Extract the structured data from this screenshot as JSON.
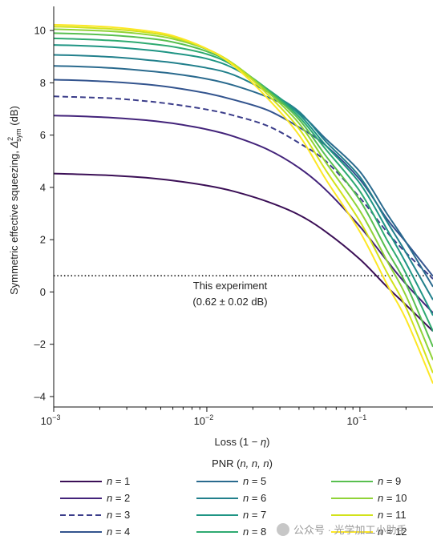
{
  "chart_data": {
    "type": "line",
    "xlabel_main": "Loss (1 − ",
    "xlabel_var": "η",
    "xlabel_close": ")",
    "ylabel_main": "Symmetric effective squeezing, ",
    "ylabel_var": "Δ",
    "ylabel_sup": "2",
    "ylabel_sub": "sym",
    "ylabel_unit": " (dB)",
    "x_scale": "log",
    "xlim": [
      0.001,
      0.3
    ],
    "ylim": [
      -4.4,
      10.8
    ],
    "x_ticks": [
      {
        "value": 0.001,
        "base": "10",
        "exp": "−3"
      },
      {
        "value": 0.01,
        "base": "10",
        "exp": "−2"
      },
      {
        "value": 0.1,
        "base": "10",
        "exp": "−1"
      }
    ],
    "y_ticks": [
      {
        "value": 10,
        "label": "10"
      },
      {
        "value": 8,
        "label": "8"
      },
      {
        "value": 6,
        "label": "6"
      },
      {
        "value": 4,
        "label": "4"
      },
      {
        "value": 2,
        "label": "2"
      },
      {
        "value": 0,
        "label": "0"
      },
      {
        "value": -2,
        "label": "–2"
      },
      {
        "value": -4,
        "label": "–4"
      }
    ],
    "reference_line": {
      "y": 0.62,
      "label_line1": "This experiment",
      "label_line2": "(0.62 ± 0.02 dB)"
    },
    "x": [
      0.001,
      0.0015,
      0.0025,
      0.004,
      0.006,
      0.01,
      0.015,
      0.025,
      0.04,
      0.06,
      0.1,
      0.15,
      0.2,
      0.3
    ],
    "series": [
      {
        "name": "n = 1",
        "n": "1",
        "color": "#3b0f56",
        "dashed": false,
        "values": [
          4.53,
          4.5,
          4.45,
          4.37,
          4.26,
          4.07,
          3.85,
          3.45,
          2.95,
          2.3,
          1.25,
          0.2,
          -0.5,
          -1.5
        ]
      },
      {
        "name": "n = 2",
        "n": "2",
        "color": "#43237a",
        "dashed": false,
        "values": [
          6.75,
          6.72,
          6.66,
          6.57,
          6.45,
          6.22,
          5.95,
          5.45,
          4.75,
          3.9,
          2.5,
          1.2,
          0.3,
          -0.8
        ]
      },
      {
        "name": "n = 3",
        "n": "3",
        "color": "#3b3d8a",
        "dashed": true,
        "values": [
          7.48,
          7.45,
          7.4,
          7.3,
          7.18,
          6.98,
          6.75,
          6.35,
          5.7,
          5.0,
          3.6,
          2.3,
          1.5,
          0.5
        ]
      },
      {
        "name": "n = 4",
        "n": "4",
        "color": "#33548e",
        "dashed": false,
        "values": [
          8.12,
          8.09,
          8.03,
          7.94,
          7.82,
          7.6,
          7.35,
          6.95,
          6.3,
          5.6,
          4.3,
          2.8,
          1.9,
          0.6
        ]
      },
      {
        "name": "n = 5",
        "n": "5",
        "color": "#2a6a8e",
        "dashed": false,
        "values": [
          8.65,
          8.62,
          8.56,
          8.46,
          8.35,
          8.15,
          7.9,
          7.45,
          6.85,
          5.85,
          4.6,
          3.0,
          1.9,
          0.2
        ]
      },
      {
        "name": "n = 6",
        "n": "6",
        "color": "#22808c",
        "dashed": false,
        "values": [
          9.07,
          9.04,
          8.98,
          8.88,
          8.77,
          8.57,
          8.3,
          7.65,
          6.9,
          5.75,
          4.4,
          2.7,
          1.5,
          -0.3
        ]
      },
      {
        "name": "n = 7",
        "n": "7",
        "color": "#1f9584",
        "dashed": false,
        "values": [
          9.45,
          9.42,
          9.36,
          9.26,
          9.14,
          8.92,
          8.55,
          7.75,
          6.8,
          5.6,
          4.15,
          2.4,
          1.1,
          -0.9
        ]
      },
      {
        "name": "n = 8",
        "n": "8",
        "color": "#2eaa71",
        "dashed": false,
        "values": [
          9.7,
          9.67,
          9.61,
          9.51,
          9.38,
          9.1,
          8.65,
          7.75,
          6.7,
          5.45,
          3.85,
          2.0,
          0.7,
          -1.5
        ]
      },
      {
        "name": "n = 9",
        "n": "9",
        "color": "#58bf4f",
        "dashed": false,
        "values": [
          9.9,
          9.87,
          9.81,
          9.71,
          9.56,
          9.2,
          8.7,
          7.7,
          6.6,
          5.2,
          3.5,
          1.6,
          0.3,
          -2.1
        ]
      },
      {
        "name": "n = 10",
        "n": "10",
        "color": "#90d338",
        "dashed": false,
        "values": [
          10.05,
          10.02,
          9.96,
          9.85,
          9.68,
          9.28,
          8.72,
          7.65,
          6.45,
          4.95,
          3.1,
          1.2,
          -0.15,
          -2.6
        ]
      },
      {
        "name": "n = 11",
        "n": "11",
        "color": "#d2e21b",
        "dashed": false,
        "values": [
          10.15,
          10.12,
          10.05,
          9.93,
          9.75,
          9.3,
          8.7,
          7.55,
          6.25,
          4.65,
          2.7,
          0.75,
          -0.6,
          -3.1
        ]
      },
      {
        "name": "n = 12",
        "n": "12",
        "color": "#fde725",
        "dashed": false,
        "values": [
          10.22,
          10.19,
          10.12,
          9.99,
          9.8,
          9.3,
          8.65,
          7.4,
          6.0,
          4.3,
          2.3,
          0.3,
          -1.05,
          -3.5
        ]
      }
    ],
    "legend": {
      "title_main": "PNR (",
      "title_vars": "n, n, n",
      "title_close": ")",
      "placement": "bottom",
      "columns": 3
    },
    "grid": false
  },
  "watermark": {
    "text": "公众号 · 光学加工小助手"
  }
}
